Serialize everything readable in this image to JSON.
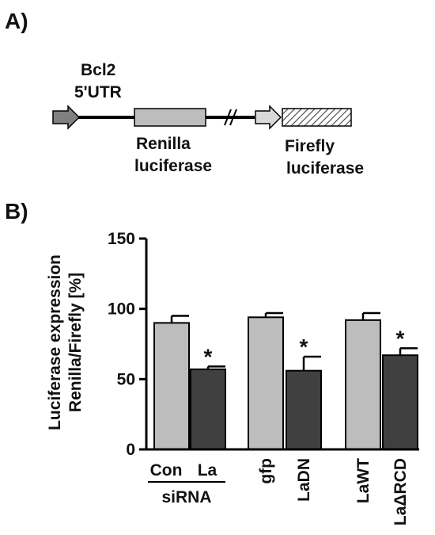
{
  "panel_a": {
    "label": "A)",
    "promoter_label_line1": "Bcl2",
    "promoter_label_line2": "5'UTR",
    "renilla_line1": "Renilla",
    "renilla_line2": "luciferase",
    "firefly_line1": "Firefly",
    "firefly_line2": "luciferase",
    "colors": {
      "promoter_arrow": "#808080",
      "renilla_box": "#bdbdbd",
      "firefly_arrow": "#d9d9d9",
      "firefly_box_hatch": "#444444"
    }
  },
  "panel_b": {
    "label": "B)",
    "sirna_group_label": "siRNA"
  },
  "chart_data": {
    "type": "bar",
    "ylabel_line1": "Luciferase expression",
    "ylabel_line2": "Renilla/Firefly [%]",
    "ylim": [
      0,
      150
    ],
    "yticks": [
      "0",
      "50",
      "100",
      "150"
    ],
    "categories": [
      "Con",
      "La",
      "gfp",
      "LaDN",
      "LaWT",
      "LaΔRCD"
    ],
    "values": [
      90,
      57,
      94,
      56,
      92,
      67
    ],
    "errors": [
      5,
      2,
      3,
      10,
      5,
      5
    ],
    "significant": [
      false,
      true,
      false,
      true,
      false,
      true
    ],
    "significance_marker": "*",
    "bar_colors": [
      "#bdbdbd",
      "#404040",
      "#bdbdbd",
      "#404040",
      "#bdbdbd",
      "#404040"
    ],
    "grid": false,
    "legend": "none"
  }
}
